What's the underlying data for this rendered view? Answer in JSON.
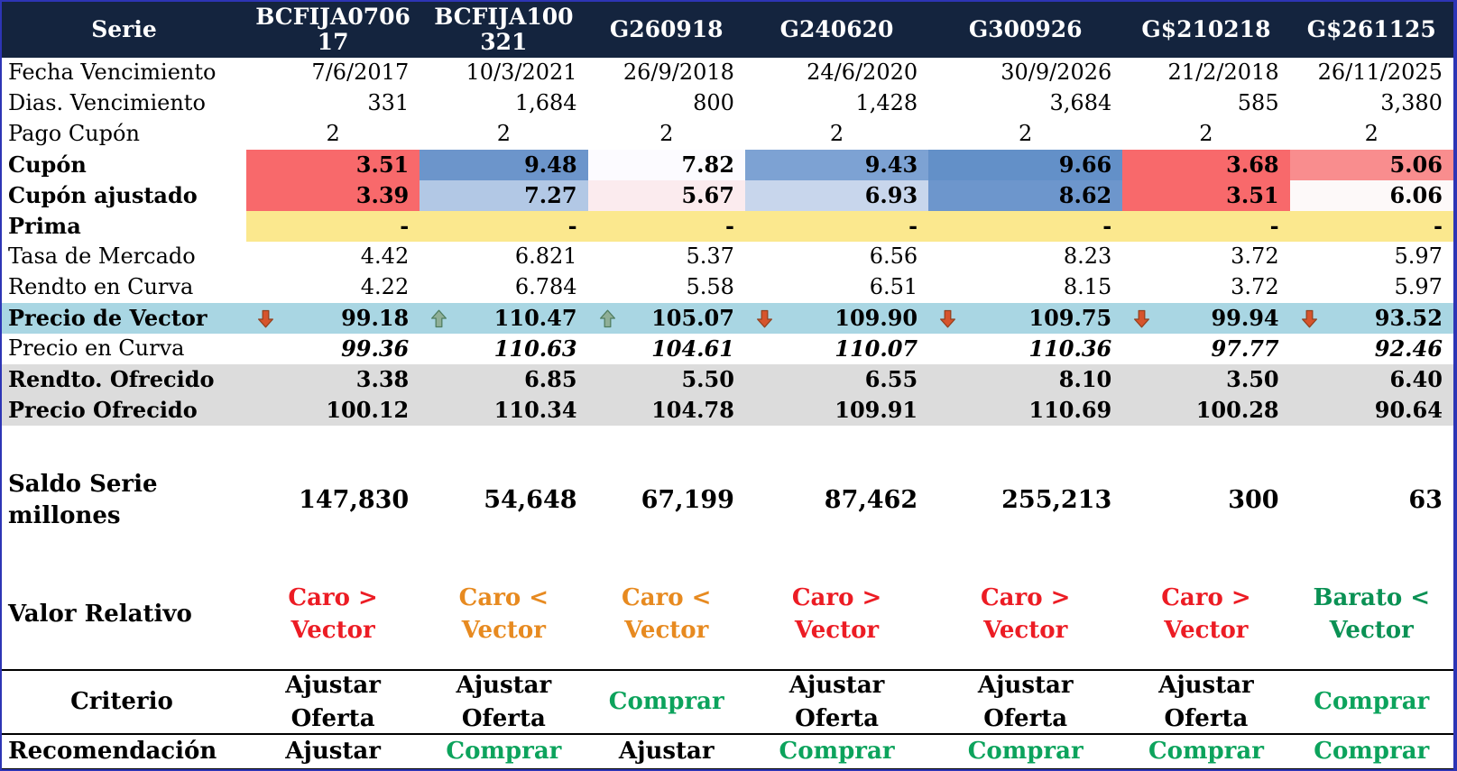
{
  "colors": {
    "css": {
      "header-bg": "#14243E",
      "border-blue": "#2D35B5"
    },
    "row_backgrounds": {
      "prima_yellow": "#FBE88E",
      "vector_light_blue": "#A9D6E3",
      "offered_gray": "#DCDCDC"
    },
    "scale": {
      "red": "#F8696B",
      "salmon": "#F98D8E",
      "blue_medium": "#6690C9",
      "blue_light": "#B2C8E5",
      "near_white": "#FCFBFF"
    },
    "text": {
      "red": "#EC1C24",
      "orange": "#E78A20",
      "green": "#0CA35C",
      "green_dark": "#0A9154",
      "white": "#FFFFFF",
      "black": "#000000"
    },
    "arrows": {
      "down_fill": "#D6542C",
      "down_stroke": "#93401E",
      "up_fill": "#8FAF97",
      "up_stroke": "#4E7C5F"
    }
  },
  "table": {
    "header": {
      "label": "Serie",
      "columns": [
        {
          "code": "BCFIJA070617",
          "display": "BCFIJA0706\n17"
        },
        {
          "code": "BCFIJA100321",
          "display": "BCFIJA100\n321"
        },
        {
          "code": "G260918",
          "display": "G260918"
        },
        {
          "code": "G240620",
          "display": "G240620"
        },
        {
          "code": "G300926",
          "display": "G300926"
        },
        {
          "code": "G$210218",
          "display": "G$210218"
        },
        {
          "code": "G$261125",
          "display": "G$261125"
        }
      ]
    },
    "rows": [
      {
        "name": "fecha-vencimiento",
        "variant": "normal",
        "label": {
          "text": "Fecha Vencimiento",
          "bold": false
        },
        "align": "right",
        "cells": [
          "7/6/2017",
          "10/3/2021",
          "26/9/2018",
          "24/6/2020",
          "30/9/2026",
          "21/2/2018",
          "26/11/2025"
        ]
      },
      {
        "name": "dias-vencimiento",
        "variant": "normal",
        "label": {
          "text": "Dias. Vencimiento",
          "bold": false
        },
        "align": "right",
        "cells": [
          "331",
          "1,684",
          "800",
          "1,428",
          "3,684",
          "585",
          "3,380"
        ]
      },
      {
        "name": "pago-cupon",
        "variant": "normal",
        "label": {
          "text": "Pago Cupón",
          "bold": false
        },
        "align": "center",
        "cells": [
          "2",
          "2",
          "2",
          "2",
          "2",
          "2",
          "2"
        ]
      },
      {
        "name": "cupon",
        "variant": "normal",
        "bold": true,
        "label": {
          "text": "Cupón",
          "bold": true
        },
        "align": "right",
        "cells": [
          {
            "text": "3.51",
            "bg": "#F8696B"
          },
          {
            "text": "9.48",
            "bg": "#6C95CB"
          },
          {
            "text": "7.82",
            "bg": "#FCFBFF"
          },
          {
            "text": "9.43",
            "bg": "#7DA2D3"
          },
          {
            "text": "9.66",
            "bg": "#6390C8"
          },
          {
            "text": "3.68",
            "bg": "#F8696B"
          },
          {
            "text": "5.06",
            "bg": "#F98D8E"
          }
        ]
      },
      {
        "name": "cupon-ajustado",
        "variant": "normal",
        "bold": true,
        "label": {
          "text": "Cupón ajustado",
          "bold": true
        },
        "align": "right",
        "cells": [
          {
            "text": "3.39",
            "bg": "#F8696B"
          },
          {
            "text": "7.27",
            "bg": "#B2C8E5"
          },
          {
            "text": "5.67",
            "bg": "#FBEBEE"
          },
          {
            "text": "6.93",
            "bg": "#C8D6EC"
          },
          {
            "text": "8.62",
            "bg": "#6D96CC"
          },
          {
            "text": "3.51",
            "bg": "#F8696B"
          },
          {
            "text": "6.06",
            "bg": "#FDF9F9"
          }
        ]
      },
      {
        "name": "prima",
        "variant": "normal",
        "bold": true,
        "label": {
          "text": "Prima",
          "bold": true
        },
        "align": "right",
        "cells": [
          {
            "text": "-",
            "bg": "#FBE88E"
          },
          {
            "text": "-",
            "bg": "#FBE88E"
          },
          {
            "text": "-",
            "bg": "#FBE88E"
          },
          {
            "text": "-",
            "bg": "#FBE88E"
          },
          {
            "text": "-",
            "bg": "#FBE88E"
          },
          {
            "text": "-",
            "bg": "#FBE88E"
          },
          {
            "text": "-",
            "bg": "#FBE88E"
          }
        ]
      },
      {
        "name": "tasa-de-mercado",
        "variant": "normal",
        "label": {
          "text": "Tasa de Mercado",
          "bold": false
        },
        "align": "right",
        "cells": [
          "4.42",
          "6.821",
          "5.37",
          "6.56",
          "8.23",
          "3.72",
          "5.97"
        ]
      },
      {
        "name": "rendto-en-curva",
        "variant": "normal",
        "label": {
          "text": "Rendto en Curva",
          "bold": false
        },
        "align": "right",
        "cells": [
          "4.22",
          "6.784",
          "5.58",
          "6.51",
          "8.15",
          "3.72",
          "5.97"
        ]
      },
      {
        "name": "precio-de-vector",
        "variant": "normal",
        "bold": true,
        "row_bg": "#A9D6E3",
        "label": {
          "text": "Precio de Vector",
          "bold": true
        },
        "align": "right",
        "cells": [
          {
            "text": "99.18",
            "arrow": "down"
          },
          {
            "text": "110.47",
            "arrow": "up"
          },
          {
            "text": "105.07",
            "arrow": "up"
          },
          {
            "text": "109.90",
            "arrow": "down"
          },
          {
            "text": "109.75",
            "arrow": "down"
          },
          {
            "text": "99.94",
            "arrow": "down"
          },
          {
            "text": "93.52",
            "arrow": "down"
          }
        ]
      },
      {
        "name": "precio-en-curva",
        "variant": "normal",
        "bold": true,
        "italic": true,
        "label": {
          "text": "Precio en Curva",
          "bold": false
        },
        "align": "right",
        "cells": [
          "99.36",
          "110.63",
          "104.61",
          "110.07",
          "110.36",
          "97.77",
          "92.46"
        ]
      },
      {
        "name": "rendto-ofrecido",
        "variant": "normal",
        "bold": true,
        "row_bg": "#DCDCDC",
        "label": {
          "text": "Rendto. Ofrecido",
          "bold": true
        },
        "align": "right",
        "cells": [
          "3.38",
          "6.85",
          "5.50",
          "6.55",
          "8.10",
          "3.50",
          "6.40"
        ]
      },
      {
        "name": "precio-ofrecido",
        "variant": "normal",
        "bold": true,
        "row_bg": "#DCDCDC",
        "label": {
          "text": "Precio Ofrecido",
          "bold": true
        },
        "align": "right",
        "cells": [
          "100.12",
          "110.34",
          "104.78",
          "109.91",
          "110.69",
          "100.28",
          "90.64"
        ]
      },
      {
        "name": "spacer",
        "variant": "gap",
        "label": {
          "text": "",
          "bold": false
        },
        "align": "right",
        "cells": []
      },
      {
        "name": "saldo-serie",
        "variant": "saldo",
        "bold": true,
        "label": {
          "text": "Saldo Serie\nmillones",
          "bold": true
        },
        "align": "right",
        "cells": [
          "147,830",
          "54,648",
          "67,199",
          "87,462",
          "255,213",
          "300",
          "63"
        ]
      },
      {
        "name": "valor-relativo",
        "variant": "valor",
        "bold": true,
        "label": {
          "text": "Valor Relativo",
          "bold": true
        },
        "align": "center",
        "cells": [
          {
            "text": "Caro >\nVector",
            "fg": "#EC1C24"
          },
          {
            "text": "Caro <\nVector",
            "fg": "#E78A20"
          },
          {
            "text": "Caro <\nVector",
            "fg": "#E78A20"
          },
          {
            "text": "Caro >\nVector",
            "fg": "#EC1C24"
          },
          {
            "text": "Caro >\nVector",
            "fg": "#EC1C24"
          },
          {
            "text": "Caro >\nVector",
            "fg": "#EC1C24"
          },
          {
            "text": "Barato <\nVector",
            "fg": "#0A9154"
          }
        ]
      },
      {
        "name": "criterio",
        "variant": "criterio",
        "bold": true,
        "label": {
          "text": "Criterio",
          "bold": true,
          "align": "center"
        },
        "align": "center",
        "cells": [
          {
            "text": "Ajustar\nOferta"
          },
          {
            "text": "Ajustar\nOferta"
          },
          {
            "text": "Comprar",
            "fg": "#0CA35C"
          },
          {
            "text": "Ajustar\nOferta"
          },
          {
            "text": "Ajustar\nOferta"
          },
          {
            "text": "Ajustar\nOferta"
          },
          {
            "text": "Comprar",
            "fg": "#0CA35C"
          }
        ]
      },
      {
        "name": "recomendacion",
        "variant": "recom",
        "bold": true,
        "label": {
          "text": "Recomendación",
          "bold": true
        },
        "align": "center",
        "cells": [
          {
            "text": "Ajustar"
          },
          {
            "text": "Comprar",
            "fg": "#0CA35C"
          },
          {
            "text": "Ajustar"
          },
          {
            "text": "Comprar",
            "fg": "#0CA35C"
          },
          {
            "text": "Comprar",
            "fg": "#0CA35C"
          },
          {
            "text": "Comprar",
            "fg": "#0CA35C"
          },
          {
            "text": "Comprar",
            "fg": "#0CA35C"
          }
        ]
      }
    ]
  }
}
